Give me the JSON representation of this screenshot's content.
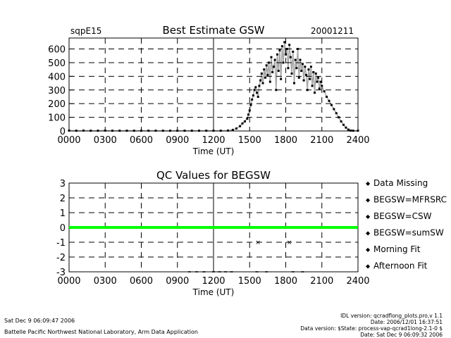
{
  "chart_data": [
    {
      "type": "scatter",
      "title": "Best Estimate GSW",
      "site": "sqpE15",
      "date": "20001211",
      "xlabel": "Time (UT)",
      "ylabel": "",
      "xlim": [
        0,
        2400
      ],
      "ylim": [
        0,
        680
      ],
      "x_ticks": [
        "0000",
        "0300",
        "0600",
        "0900",
        "1200",
        "1500",
        "1800",
        "2100",
        "2400"
      ],
      "y_ticks": [
        "0",
        "100",
        "200",
        "300",
        "400",
        "500",
        "600"
      ],
      "grid": true,
      "series": [
        {
          "color": "#000000",
          "points": [
            [
              0,
              3
            ],
            [
              60,
              2
            ],
            [
              120,
              3
            ],
            [
              180,
              2
            ],
            [
              240,
              2
            ],
            [
              300,
              3
            ],
            [
              360,
              2
            ],
            [
              420,
              2
            ],
            [
              480,
              2
            ],
            [
              540,
              2
            ],
            [
              600,
              2
            ],
            [
              660,
              2
            ],
            [
              720,
              2
            ],
            [
              780,
              2
            ],
            [
              840,
              2
            ],
            [
              900,
              2
            ],
            [
              960,
              2
            ],
            [
              1020,
              2
            ],
            [
              1080,
              2
            ],
            [
              1140,
              2
            ],
            [
              1200,
              2
            ],
            [
              1260,
              2
            ],
            [
              1320,
              3
            ],
            [
              1360,
              8
            ],
            [
              1390,
              18
            ],
            [
              1420,
              35
            ],
            [
              1440,
              55
            ],
            [
              1460,
              70
            ],
            [
              1480,
              90
            ],
            [
              1490,
              120
            ],
            [
              1500,
              150
            ],
            [
              1510,
              190
            ],
            [
              1520,
              230
            ],
            [
              1530,
              260
            ],
            [
              1540,
              300
            ],
            [
              1550,
              320
            ],
            [
              1560,
              280
            ],
            [
              1570,
              250
            ],
            [
              1580,
              330
            ],
            [
              1590,
              370
            ],
            [
              1600,
              420
            ],
            [
              1610,
              350
            ],
            [
              1620,
              450
            ],
            [
              1630,
              390
            ],
            [
              1640,
              480
            ],
            [
              1650,
              410
            ],
            [
              1660,
              500
            ],
            [
              1670,
              360
            ],
            [
              1680,
              540
            ],
            [
              1690,
              430
            ],
            [
              1700,
              470
            ],
            [
              1710,
              520
            ],
            [
              1720,
              300
            ],
            [
              1730,
              560
            ],
            [
              1740,
              440
            ],
            [
              1750,
              590
            ],
            [
              1760,
              380
            ],
            [
              1770,
              620
            ],
            [
              1780,
              500
            ],
            [
              1790,
              650
            ],
            [
              1800,
              560
            ],
            [
              1810,
              600
            ],
            [
              1820,
              460
            ],
            [
              1830,
              630
            ],
            [
              1840,
              540
            ],
            [
              1850,
              420
            ],
            [
              1860,
              580
            ],
            [
              1870,
              350
            ],
            [
              1880,
              520
            ],
            [
              1890,
              460
            ],
            [
              1900,
              600
            ],
            [
              1910,
              390
            ],
            [
              1920,
              520
            ],
            [
              1930,
              440
            ],
            [
              1940,
              490
            ],
            [
              1950,
              370
            ],
            [
              1960,
              470
            ],
            [
              1970,
              410
            ],
            [
              1980,
              300
            ],
            [
              1990,
              450
            ],
            [
              2000,
              380
            ],
            [
              2010,
              470
            ],
            [
              2020,
              330
            ],
            [
              2030,
              430
            ],
            [
              2040,
              280
            ],
            [
              2050,
              420
            ],
            [
              2060,
              360
            ],
            [
              2070,
              390
            ],
            [
              2080,
              310
            ],
            [
              2090,
              360
            ],
            [
              2100,
              330
            ],
            [
              2120,
              290
            ],
            [
              2140,
              250
            ],
            [
              2160,
              220
            ],
            [
              2180,
              190
            ],
            [
              2200,
              160
            ],
            [
              2220,
              130
            ],
            [
              2240,
              100
            ],
            [
              2260,
              70
            ],
            [
              2280,
              45
            ],
            [
              2300,
              25
            ],
            [
              2320,
              10
            ],
            [
              2340,
              3
            ],
            [
              2360,
              2
            ],
            [
              2400,
              2
            ]
          ]
        }
      ]
    },
    {
      "type": "scatter",
      "title": "QC Values for BEGSW",
      "xlabel": "Time (UT)",
      "ylabel": "",
      "xlim": [
        0,
        2400
      ],
      "ylim": [
        -3,
        3
      ],
      "x_ticks": [
        "0000",
        "0300",
        "0600",
        "0900",
        "1200",
        "1500",
        "1800",
        "2100",
        "2400"
      ],
      "y_ticks": [
        "3",
        "2",
        "1",
        "0",
        "-1",
        "-2",
        "-3"
      ],
      "grid": true,
      "legend_position": "right",
      "series": [
        {
          "name": "Data Missing",
          "color": "#000000",
          "points": [
            [
              1000,
              -3
            ],
            [
              1060,
              -3
            ],
            [
              1120,
              -3
            ],
            [
              1200,
              -3
            ],
            [
              1250,
              -3
            ],
            [
              1300,
              -3
            ],
            [
              1350,
              -3
            ],
            [
              1560,
              -3
            ],
            [
              1640,
              -3
            ],
            [
              1860,
              -3
            ],
            [
              1940,
              -3
            ]
          ]
        },
        {
          "name": "BEGSW=MFRSRC",
          "color": "#0000ff",
          "points": []
        },
        {
          "name": "BEGSW=CSW",
          "color": "#ff0000",
          "points": [
            [
              1570,
              -1
            ],
            [
              1830,
              -1
            ]
          ]
        },
        {
          "name": "BEGSW=sumSW",
          "color": "#00ff00",
          "points": [
            [
              0,
              0
            ],
            [
              2400,
              0
            ]
          ]
        },
        {
          "name": "Morning Fit",
          "color": "#ff8c00",
          "points": []
        },
        {
          "name": "Afternoon Fit",
          "color": "#00ffff",
          "points": []
        }
      ]
    }
  ],
  "footer": {
    "left_date": "Sat Dec  9 06:09:47 2006",
    "left_org": "Battelle Pacific Northwest National Laboratory, Arm Data Application",
    "right_lines": [
      "IDL version: qcradflong_plots.pro,v 1.1",
      "Date: 2006/12/01 16:37:51",
      "Data version: $State: process-vap-qcrad1long-2.1-0 $",
      "Date: Sat Dec  9 06:09:32 2006"
    ]
  }
}
